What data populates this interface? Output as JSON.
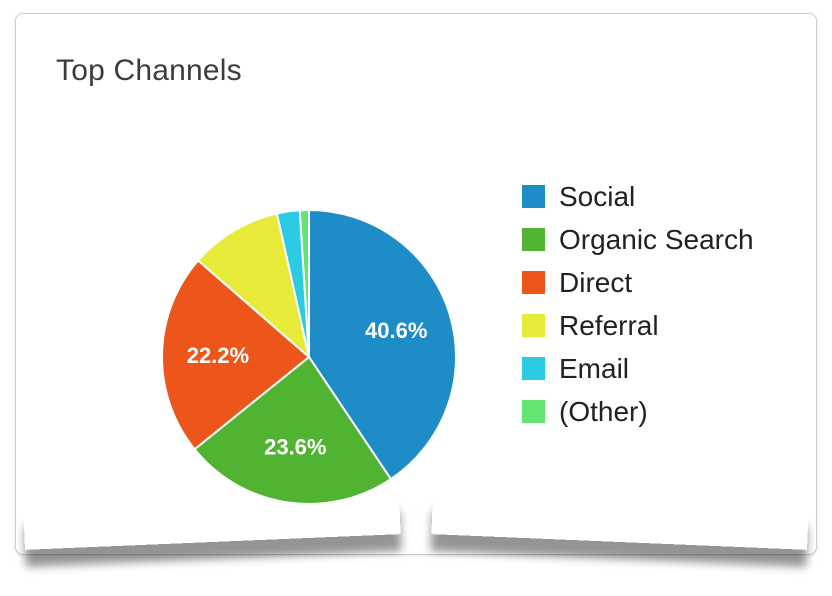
{
  "card": {
    "title": "Top Channels"
  },
  "chart_data": {
    "type": "pie",
    "title": "Top Channels",
    "legend_position": "right",
    "start_angle_deg": 0,
    "direction": "clockwise",
    "colors": {
      "social": "#1e8cc6",
      "organic_search": "#50b432",
      "direct": "#ed561b",
      "referral": "#e8ea3a",
      "email": "#2bcbe4",
      "other": "#64e572"
    },
    "slices": [
      {
        "name": "Social",
        "value": 40.6,
        "label": "40.6%",
        "color": "#1e8cc6"
      },
      {
        "name": "Organic Search",
        "value": 23.6,
        "label": "23.6%",
        "color": "#50b432"
      },
      {
        "name": "Direct",
        "value": 22.2,
        "label": "22.2%",
        "color": "#ed561b"
      },
      {
        "name": "Referral",
        "value": 10.1,
        "label": "",
        "color": "#e8ea3a"
      },
      {
        "name": "Email",
        "value": 2.5,
        "label": "",
        "color": "#2bcbe4"
      },
      {
        "name": "(Other)",
        "value": 1.0,
        "label": "",
        "color": "#64e572"
      }
    ]
  }
}
